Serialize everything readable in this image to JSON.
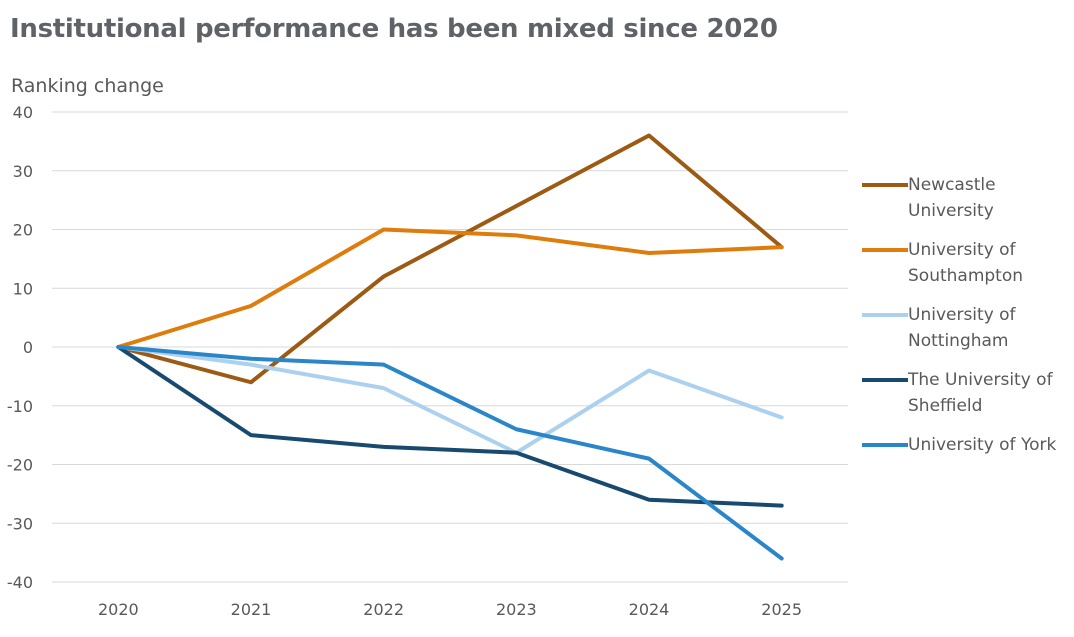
{
  "chart_data": {
    "type": "line",
    "title": "Institutional performance has been mixed since 2020",
    "ylabel": "Ranking change",
    "xlabel": "",
    "ylim": [
      -40,
      40
    ],
    "yticks": [
      40,
      30,
      20,
      10,
      0,
      -10,
      -20,
      -30,
      -40
    ],
    "categories": [
      "2020",
      "2021",
      "2022",
      "2023",
      "2024",
      "2025"
    ],
    "grid": "horizontal",
    "legend_position": "right",
    "series": [
      {
        "name": "Newcastle University",
        "color": "#9c5a12",
        "values": [
          0,
          -6,
          12,
          24,
          36,
          17
        ]
      },
      {
        "name": "University of Southampton",
        "color": "#de7c0c",
        "values": [
          0,
          7,
          20,
          19,
          16,
          17
        ]
      },
      {
        "name": "University of Nottingham",
        "color": "#acd1ef",
        "values": [
          0,
          -3,
          -7,
          -18,
          -4,
          -12
        ]
      },
      {
        "name": "The University of Sheffield",
        "color": "#174a6e",
        "values": [
          0,
          -15,
          -17,
          -18,
          -26,
          -27
        ]
      },
      {
        "name": "University of York",
        "color": "#2a86c8",
        "values": [
          0,
          -2,
          -3,
          -14,
          -19,
          -36
        ]
      }
    ]
  }
}
